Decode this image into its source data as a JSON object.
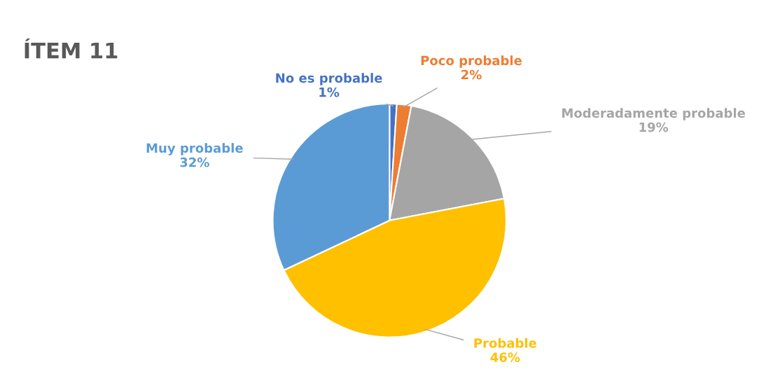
{
  "chart_data": {
    "type": "pie",
    "title": "ÍTEM 11",
    "categories": [
      "No es probable",
      "Poco probable",
      "Moderadamente probable",
      "Probable",
      "Muy probable"
    ],
    "values": [
      1,
      2,
      19,
      46,
      32
    ],
    "colors": [
      "#4472c4",
      "#ed7d31",
      "#a5a5a5",
      "#ffc000",
      "#5b9bd5"
    ],
    "value_labels": [
      "1%",
      "2%",
      "19%",
      "46%",
      "32%"
    ],
    "legend": false
  }
}
